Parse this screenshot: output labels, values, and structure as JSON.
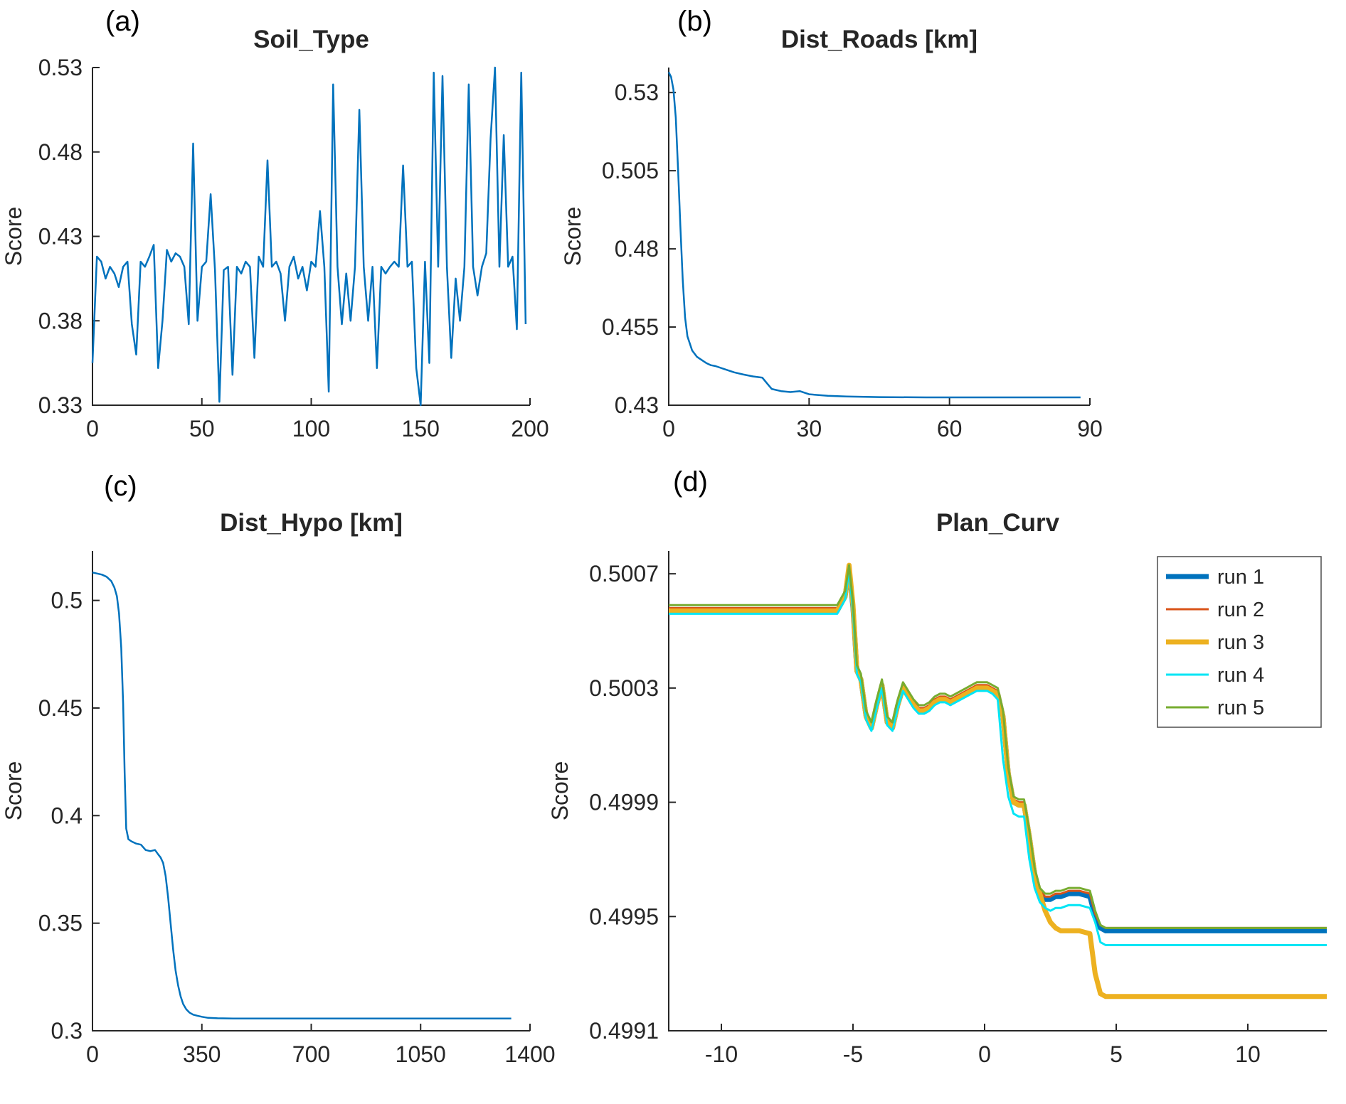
{
  "figure": {
    "background": "#ffffff",
    "axis_color": "#262626",
    "title_color": "#1a1a1a"
  },
  "chart_data": [
    {
      "panel_label": "(a)",
      "type": "line",
      "title": "Soil_Type",
      "xlabel": "",
      "ylabel": "Score",
      "xlim": [
        0,
        200
      ],
      "ylim": [
        0.33,
        0.53
      ],
      "grid": false,
      "xticks": {
        "values": [
          0,
          50,
          100,
          150,
          200
        ],
        "labels": [
          "0",
          "50",
          "100",
          "150",
          "200"
        ]
      },
      "yticks": {
        "values": [
          0.33,
          0.38,
          0.43,
          0.48,
          0.53
        ],
        "labels": [
          "0.33",
          "0.38",
          "0.43",
          "0.48",
          "0.53"
        ]
      },
      "series": [
        {
          "name": "score",
          "color": "#0072BD",
          "width": 2.5,
          "x_start": 0,
          "x_step": 2,
          "y": [
            0.355,
            0.418,
            0.415,
            0.405,
            0.412,
            0.408,
            0.4,
            0.412,
            0.415,
            0.378,
            0.36,
            0.415,
            0.412,
            0.418,
            0.425,
            0.352,
            0.38,
            0.422,
            0.415,
            0.42,
            0.418,
            0.412,
            0.378,
            0.485,
            0.38,
            0.412,
            0.415,
            0.455,
            0.41,
            0.332,
            0.41,
            0.412,
            0.348,
            0.412,
            0.408,
            0.415,
            0.412,
            0.358,
            0.418,
            0.412,
            0.475,
            0.412,
            0.415,
            0.408,
            0.38,
            0.412,
            0.418,
            0.405,
            0.412,
            0.398,
            0.415,
            0.412,
            0.445,
            0.412,
            0.338,
            0.52,
            0.412,
            0.378,
            0.408,
            0.38,
            0.412,
            0.505,
            0.412,
            0.38,
            0.412,
            0.352,
            0.412,
            0.408,
            0.412,
            0.415,
            0.412,
            0.472,
            0.412,
            0.415,
            0.352,
            0.33,
            0.415,
            0.355,
            0.527,
            0.412,
            0.525,
            0.412,
            0.358,
            0.405,
            0.38,
            0.412,
            0.52,
            0.412,
            0.395,
            0.412,
            0.42,
            0.488,
            0.53,
            0.412,
            0.49,
            0.412,
            0.418,
            0.375,
            0.527,
            0.378
          ]
        }
      ]
    },
    {
      "panel_label": "(b)",
      "type": "line",
      "title": "Dist_Roads [km]",
      "xlabel": "",
      "ylabel": "Score",
      "xlim": [
        0,
        90
      ],
      "ylim": [
        0.43,
        0.538
      ],
      "grid": false,
      "xticks": {
        "values": [
          0,
          30,
          60,
          90
        ],
        "labels": [
          "0",
          "30",
          "60",
          "90"
        ]
      },
      "yticks": {
        "values": [
          0.43,
          0.455,
          0.48,
          0.505,
          0.53
        ],
        "labels": [
          "0.43",
          "0.455",
          "0.48",
          "0.505",
          "0.53"
        ]
      },
      "series": [
        {
          "name": "score",
          "color": "#0072BD",
          "width": 2.5,
          "x": [
            0,
            0.5,
            1,
            1.5,
            2,
            2.5,
            3,
            3.5,
            4,
            5,
            6,
            7,
            8,
            9,
            10,
            12,
            14,
            16,
            18,
            20,
            21,
            22,
            24,
            26,
            28,
            30,
            34,
            38,
            45,
            55,
            65,
            75,
            88
          ],
          "y": [
            0.5365,
            0.535,
            0.531,
            0.522,
            0.505,
            0.487,
            0.47,
            0.458,
            0.452,
            0.4475,
            0.4455,
            0.4445,
            0.4435,
            0.4428,
            0.4425,
            0.4415,
            0.4405,
            0.4398,
            0.4392,
            0.4388,
            0.437,
            0.4352,
            0.4345,
            0.4342,
            0.4345,
            0.4335,
            0.433,
            0.4328,
            0.4326,
            0.4325,
            0.4325,
            0.4325,
            0.4325
          ]
        }
      ]
    },
    {
      "panel_label": "(c)",
      "type": "line",
      "title": "Dist_Hypo [km]",
      "xlabel": "",
      "ylabel": "Score",
      "xlim": [
        0,
        1400
      ],
      "ylim": [
        0.3,
        0.523
      ],
      "grid": false,
      "xticks": {
        "values": [
          0,
          350,
          700,
          1050,
          1400
        ],
        "labels": [
          "0",
          "350",
          "700",
          "1050",
          "1400"
        ]
      },
      "yticks": {
        "values": [
          0.3,
          0.35,
          0.4,
          0.45,
          0.5
        ],
        "labels": [
          "0.3",
          "0.35",
          "0.4",
          "0.45",
          "0.5"
        ]
      },
      "series": [
        {
          "name": "score",
          "color": "#0072BD",
          "width": 2.5,
          "x": [
            0,
            15,
            30,
            45,
            60,
            70,
            78,
            85,
            92,
            98,
            103,
            108,
            115,
            125,
            140,
            155,
            170,
            185,
            200,
            210,
            218,
            226,
            234,
            242,
            250,
            258,
            266,
            274,
            282,
            290,
            300,
            310,
            322,
            335,
            350,
            370,
            400,
            450,
            550,
            700,
            900,
            1100,
            1340
          ],
          "y": [
            0.513,
            0.5125,
            0.512,
            0.511,
            0.509,
            0.506,
            0.502,
            0.494,
            0.478,
            0.452,
            0.42,
            0.394,
            0.389,
            0.388,
            0.387,
            0.3865,
            0.384,
            0.3835,
            0.384,
            0.382,
            0.3805,
            0.378,
            0.372,
            0.362,
            0.35,
            0.338,
            0.328,
            0.321,
            0.316,
            0.3125,
            0.31,
            0.3085,
            0.3075,
            0.307,
            0.3065,
            0.306,
            0.3058,
            0.3057,
            0.3057,
            0.3057,
            0.3057,
            0.3057,
            0.3057
          ]
        }
      ]
    },
    {
      "panel_label": "(d)",
      "type": "line",
      "title": "Plan_Curv",
      "xlabel": "",
      "ylabel": "Score",
      "xlim": [
        -12,
        13
      ],
      "ylim": [
        0.4991,
        0.50078
      ],
      "grid": false,
      "legend": {
        "position": "northeast",
        "entries": [
          "run 1",
          "run 2",
          "run 3",
          "run 4",
          "run 5"
        ]
      },
      "xticks": {
        "values": [
          -10,
          -5,
          0,
          5,
          10
        ],
        "labels": [
          "-10",
          "-5",
          "0",
          "5",
          "10"
        ]
      },
      "yticks": {
        "values": [
          0.4991,
          0.4995,
          0.4999,
          0.5003,
          0.5007
        ],
        "labels": [
          "0.4991",
          "0.4995",
          "0.4999",
          "0.5003",
          "0.5007"
        ]
      },
      "x_shared": [
        -12,
        -5.6,
        -5.3,
        -5.15,
        -5,
        -4.85,
        -4.7,
        -4.5,
        -4.3,
        -4.1,
        -3.9,
        -3.7,
        -3.5,
        -3.3,
        -3.1,
        -2.9,
        -2.7,
        -2.5,
        -2.3,
        -2.1,
        -1.9,
        -1.7,
        -1.5,
        -1.3,
        -1.1,
        -0.9,
        -0.7,
        -0.5,
        -0.3,
        -0.1,
        0.1,
        0.3,
        0.5,
        0.7,
        0.9,
        1.1,
        1.3,
        1.5,
        1.7,
        1.9,
        2.1,
        2.3,
        2.5,
        2.7,
        2.9,
        3.2,
        3.6,
        4,
        4.2,
        4.4,
        4.6,
        5,
        13
      ],
      "series": [
        {
          "name": "run 1",
          "color": "#0072BD",
          "width": 7,
          "y": [
            0.50057,
            0.50057,
            0.50062,
            0.50072,
            0.50058,
            0.50036,
            0.50033,
            0.5002,
            0.50016,
            0.50024,
            0.50031,
            0.50018,
            0.50016,
            0.50024,
            0.5003,
            0.50027,
            0.50024,
            0.50022,
            0.50022,
            0.50023,
            0.50025,
            0.50026,
            0.50026,
            0.50025,
            0.50026,
            0.50027,
            0.50028,
            0.50029,
            0.5003,
            0.5003,
            0.5003,
            0.50029,
            0.50028,
            0.5002,
            0.5,
            0.4999,
            0.49989,
            0.49989,
            0.49978,
            0.49965,
            0.49958,
            0.49956,
            0.49956,
            0.49957,
            0.49957,
            0.49958,
            0.49958,
            0.49957,
            0.4995,
            0.49946,
            0.49945,
            0.49945,
            0.49945
          ]
        },
        {
          "name": "run 2",
          "color": "#D95319",
          "width": 3,
          "y": [
            0.50058,
            0.50058,
            0.50063,
            0.50072,
            0.50059,
            0.50037,
            0.50034,
            0.50021,
            0.50017,
            0.50025,
            0.50032,
            0.50019,
            0.50017,
            0.50025,
            0.50031,
            0.50028,
            0.50025,
            0.50023,
            0.50023,
            0.50024,
            0.50026,
            0.50027,
            0.50027,
            0.50026,
            0.50027,
            0.50028,
            0.50029,
            0.5003,
            0.50031,
            0.50031,
            0.50031,
            0.5003,
            0.50029,
            0.50021,
            0.50001,
            0.49991,
            0.4999,
            0.4999,
            0.49979,
            0.49966,
            0.49959,
            0.49957,
            0.49957,
            0.49958,
            0.49958,
            0.49959,
            0.49959,
            0.49958,
            0.49951,
            0.49947,
            0.49946,
            0.49946,
            0.49946
          ]
        },
        {
          "name": "run 3",
          "color": "#EDB120",
          "width": 7,
          "y": [
            0.50057,
            0.50057,
            0.50062,
            0.50073,
            0.50059,
            0.50036,
            0.50033,
            0.5002,
            0.50016,
            0.50024,
            0.50031,
            0.50018,
            0.50016,
            0.50024,
            0.5003,
            0.50027,
            0.50024,
            0.50022,
            0.50022,
            0.50023,
            0.50025,
            0.50026,
            0.50026,
            0.50025,
            0.50026,
            0.50027,
            0.50028,
            0.50029,
            0.5003,
            0.5003,
            0.5003,
            0.50029,
            0.50028,
            0.5002,
            0.5,
            0.4999,
            0.49989,
            0.49989,
            0.49978,
            0.49965,
            0.49958,
            0.49952,
            0.49948,
            0.49946,
            0.49945,
            0.49945,
            0.49945,
            0.49944,
            0.4993,
            0.49923,
            0.49922,
            0.49922,
            0.49922
          ]
        },
        {
          "name": "run 4",
          "color": "#00E5F5",
          "width": 3,
          "y": [
            0.50056,
            0.50056,
            0.50061,
            0.50071,
            0.50057,
            0.50035,
            0.50032,
            0.50019,
            0.50015,
            0.50023,
            0.5003,
            0.50017,
            0.50015,
            0.50023,
            0.50029,
            0.50026,
            0.50023,
            0.50021,
            0.50021,
            0.50022,
            0.50024,
            0.50025,
            0.50025,
            0.50024,
            0.50025,
            0.50026,
            0.50027,
            0.50028,
            0.50029,
            0.50029,
            0.50029,
            0.50028,
            0.50026,
            0.50005,
            0.49992,
            0.49986,
            0.49985,
            0.49985,
            0.4997,
            0.4996,
            0.49955,
            0.49953,
            0.49952,
            0.49953,
            0.49953,
            0.49954,
            0.49954,
            0.49953,
            0.49948,
            0.49941,
            0.4994,
            0.4994,
            0.4994
          ]
        },
        {
          "name": "run 5",
          "color": "#77AC30",
          "width": 3,
          "y": [
            0.50059,
            0.50059,
            0.50064,
            0.50073,
            0.5006,
            0.50038,
            0.50035,
            0.50022,
            0.50018,
            0.50026,
            0.50033,
            0.5002,
            0.50018,
            0.50026,
            0.50032,
            0.50029,
            0.50026,
            0.50024,
            0.50024,
            0.50025,
            0.50027,
            0.50028,
            0.50028,
            0.50027,
            0.50028,
            0.50029,
            0.5003,
            0.50031,
            0.50032,
            0.50032,
            0.50032,
            0.50031,
            0.5003,
            0.50022,
            0.50002,
            0.49992,
            0.49991,
            0.49991,
            0.4998,
            0.49967,
            0.4996,
            0.49958,
            0.49958,
            0.49959,
            0.49959,
            0.4996,
            0.4996,
            0.49959,
            0.49952,
            0.49947,
            0.49946,
            0.49946,
            0.49946
          ]
        }
      ]
    }
  ]
}
